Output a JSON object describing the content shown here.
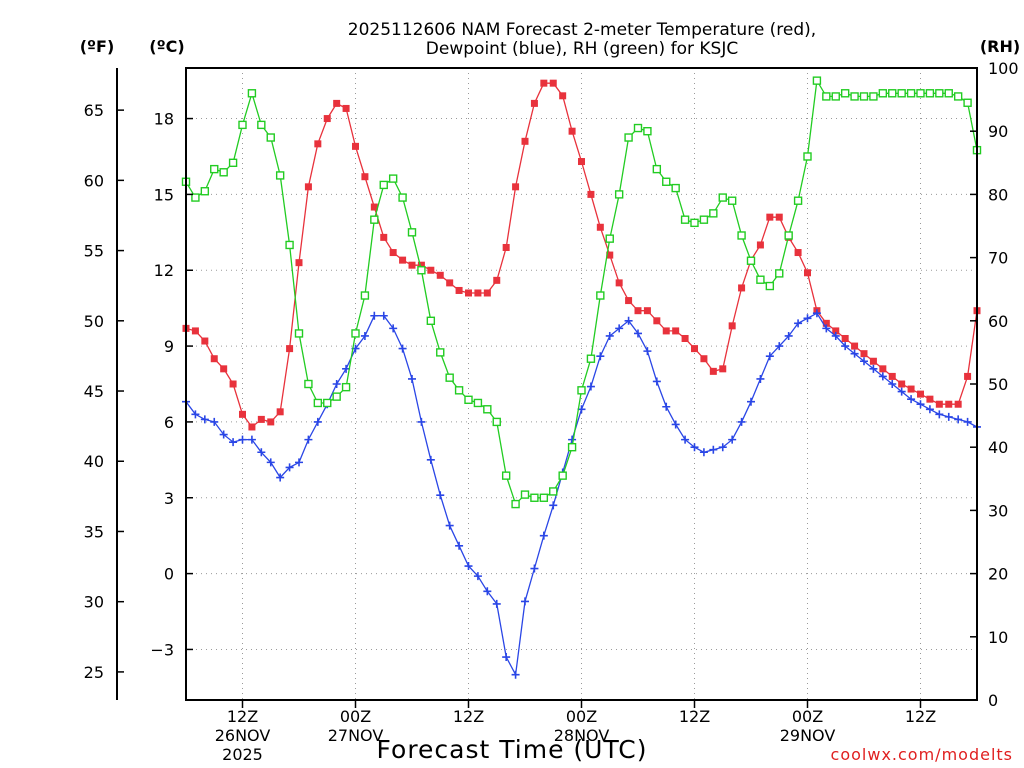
{
  "title_line1": "2025112606 NAM Forecast 2-meter Temperature (red),",
  "title_line2": "Dewpoint (blue), RH (green) for KSJC",
  "credit": "coolwx.com/modelts",
  "chart_data": {
    "type": "line",
    "title": "2025112606 NAM Forecast 2-meter Temperature (red), Dewpoint (blue), RH (green) for KSJC",
    "xlabel": "Forecast Time (UTC)",
    "x_unit": "forecast hour (step 1h, hour 0 = 2025-11-26 06Z)",
    "x_range": [
      0,
      84
    ],
    "x_ticks": [
      {
        "hour": 6,
        "label": "12Z",
        "date": "26NOV",
        "year": "2025"
      },
      {
        "hour": 18,
        "label": "00Z",
        "date": "27NOV"
      },
      {
        "hour": 30,
        "label": "12Z"
      },
      {
        "hour": 42,
        "label": "00Z",
        "date": "28NOV"
      },
      {
        "hour": 54,
        "label": "12Z"
      },
      {
        "hour": 66,
        "label": "00Z",
        "date": "29NOV"
      },
      {
        "hour": 78,
        "label": "12Z"
      }
    ],
    "y_left_c": {
      "label": "(ºC)",
      "range": [
        -5,
        20
      ],
      "ticks": [
        -3,
        0,
        3,
        6,
        9,
        12,
        15,
        18
      ]
    },
    "y_left_f": {
      "label": "(ºF)",
      "range": [
        23,
        68
      ],
      "ticks": [
        25,
        30,
        35,
        40,
        45,
        50,
        55,
        60,
        65
      ]
    },
    "y_right": {
      "label": "(RH)",
      "range": [
        0,
        100
      ],
      "ticks": [
        0,
        10,
        20,
        30,
        40,
        50,
        60,
        70,
        80,
        90,
        100
      ]
    },
    "grid": true,
    "series": [
      {
        "name": "Temperature",
        "axis": "celsius",
        "color": "#e8323c",
        "marker": "filled-square",
        "values": [
          9.7,
          9.6,
          9.2,
          8.5,
          8.1,
          7.5,
          6.3,
          5.8,
          6.1,
          6.0,
          6.4,
          8.9,
          12.3,
          15.3,
          17.0,
          18.0,
          18.6,
          18.4,
          16.9,
          15.7,
          14.5,
          13.3,
          12.7,
          12.4,
          12.2,
          12.2,
          12.0,
          11.8,
          11.5,
          11.2,
          11.1,
          11.1,
          11.1,
          11.6,
          12.9,
          15.3,
          17.1,
          18.6,
          19.4,
          19.4,
          18.9,
          17.5,
          16.3,
          15.0,
          13.7,
          12.6,
          11.5,
          10.8,
          10.4,
          10.4,
          10.0,
          9.6,
          9.6,
          9.3,
          8.9,
          8.5,
          8.0,
          8.1,
          9.8,
          11.3,
          12.4,
          13.0,
          14.1,
          14.1,
          13.3,
          12.7,
          11.9,
          10.4,
          9.9,
          9.6,
          9.3,
          9.0,
          8.7,
          8.4,
          8.1,
          7.8,
          7.5,
          7.3,
          7.1,
          6.9,
          6.7,
          6.7,
          6.7,
          7.8,
          10.4
        ]
      },
      {
        "name": "Dewpoint",
        "axis": "celsius",
        "color": "#2a46e6",
        "marker": "plus",
        "values": [
          6.8,
          6.3,
          6.1,
          6.0,
          5.5,
          5.2,
          5.3,
          5.3,
          4.8,
          4.4,
          3.8,
          4.2,
          4.4,
          5.3,
          6.0,
          6.7,
          7.5,
          8.1,
          8.9,
          9.4,
          10.2,
          10.2,
          9.7,
          8.9,
          7.7,
          6.0,
          4.5,
          3.1,
          1.9,
          1.1,
          0.3,
          -0.1,
          -0.7,
          -1.2,
          -3.3,
          -4.0,
          -1.1,
          0.2,
          1.5,
          2.7,
          4.0,
          5.3,
          6.5,
          7.4,
          8.6,
          9.4,
          9.7,
          10.0,
          9.5,
          8.8,
          7.6,
          6.6,
          5.9,
          5.3,
          5.0,
          4.8,
          4.9,
          5.0,
          5.3,
          6.0,
          6.8,
          7.7,
          8.6,
          9.0,
          9.4,
          9.9,
          10.1,
          10.3,
          9.7,
          9.4,
          9.0,
          8.7,
          8.4,
          8.1,
          7.8,
          7.5,
          7.2,
          6.9,
          6.7,
          6.5,
          6.3,
          6.2,
          6.1,
          6.0,
          5.8
        ]
      },
      {
        "name": "RH",
        "axis": "rh",
        "color": "#22cc22",
        "marker": "open-square",
        "values": [
          82,
          79.5,
          80.5,
          84,
          83.5,
          85,
          91,
          96,
          91,
          89,
          83,
          72,
          58,
          50,
          47,
          47,
          48,
          49.5,
          58,
          64,
          76,
          81.5,
          82.5,
          79.5,
          74,
          68,
          60,
          55,
          51,
          49,
          47.5,
          47,
          46,
          44,
          35.5,
          31,
          32.5,
          32,
          32,
          33,
          35.5,
          40,
          49,
          54,
          64,
          73,
          80,
          89,
          90.5,
          90,
          84,
          82,
          81,
          76,
          75.5,
          76,
          77,
          79.5,
          79,
          73.5,
          69.5,
          66.5,
          65.5,
          67.5,
          73.5,
          79,
          86,
          98,
          95.5,
          95.5,
          96,
          95.5,
          95.5,
          95.5,
          96,
          96,
          96,
          96,
          96,
          96,
          96,
          96,
          95.5,
          94.5,
          87
        ]
      }
    ]
  }
}
